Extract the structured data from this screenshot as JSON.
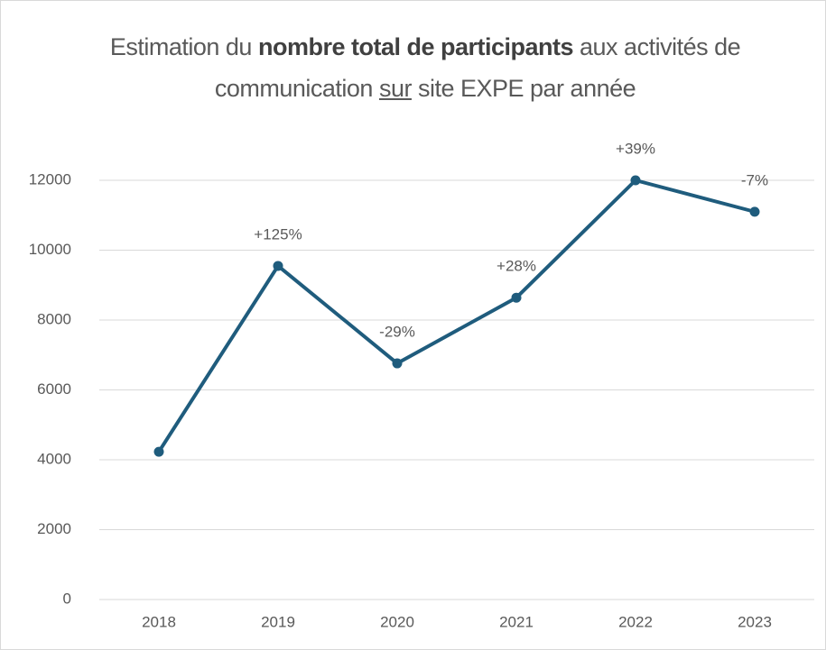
{
  "chart_data": {
    "type": "line",
    "title": [
      "Estimation du ",
      "nombre total de participants",
      " aux activités de communication ",
      "sur",
      " site EXPE par année"
    ],
    "categories": [
      "2018",
      "2019",
      "2020",
      "2021",
      "2022",
      "2023"
    ],
    "series": [
      {
        "color": "#1f5c7d",
        "values": [
          4230,
          9550,
          6760,
          8640,
          12000,
          11100
        ],
        "annotations": [
          null,
          "+125%",
          "-29%",
          "+28%",
          "+39%",
          "-7%"
        ]
      }
    ],
    "ylim": [
      0,
      12000
    ],
    "yticks": [
      0,
      2000,
      4000,
      6000,
      8000,
      10000,
      12000
    ],
    "grid": true
  }
}
